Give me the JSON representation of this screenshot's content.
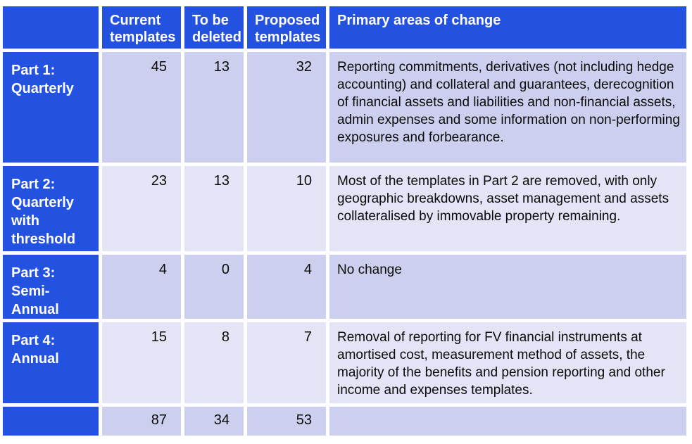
{
  "table": {
    "header": {
      "part": "",
      "current": "Current\ntemplates",
      "deleted": "To be\ndeleted",
      "proposed": "Proposed\ntemplates",
      "change": "Primary areas of change"
    },
    "rows": [
      {
        "label": "Part 1:\nQuarterly",
        "current": "45",
        "deleted": "13",
        "proposed": "32",
        "change": "Reporting commitments, derivatives (not including hedge accounting) and collateral and guarantees, derecognition of financial assets and liabilities and non-financial assets, admin expenses and some information on non-performing exposures and forbearance."
      },
      {
        "label": "Part 2:\nQuarterly\nwith\nthreshold",
        "current": "23",
        "deleted": "13",
        "proposed": "10",
        "change": "Most of the templates in Part 2 are removed, with only geographic breakdowns, asset management and assets collateralised by immovable property remaining."
      },
      {
        "label": "Part 3:\nSemi-\nAnnual",
        "current": "4",
        "deleted": "0",
        "proposed": "4",
        "change": "No change"
      },
      {
        "label": "Part 4:\nAnnual",
        "current": "15",
        "deleted": "8",
        "proposed": "7",
        "change": "Removal of reporting for FV financial instruments at amortised cost, measurement method of assets, the majority of the benefits and pension reporting and other income and expenses templates."
      }
    ],
    "totals": {
      "label": "",
      "current": "87",
      "deleted": "34",
      "proposed": "53",
      "change": ""
    }
  },
  "colors": {
    "header_blue": "#2452E0",
    "band_dark": "#CCCFED",
    "band_light": "#E3E4F5",
    "header_text": "#FFFFFF",
    "body_text": "#0B0B0B",
    "gutter": "#FFFFFF"
  }
}
